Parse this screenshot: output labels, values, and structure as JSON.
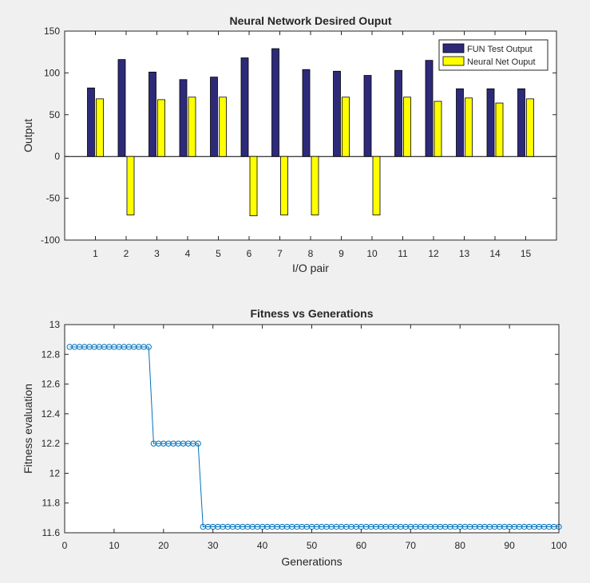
{
  "chart_data": [
    {
      "type": "bar",
      "title": "Neural Network Desired Ouput",
      "xlabel": "I/O pair",
      "ylabel": "Output",
      "ylim": [
        -100,
        150
      ],
      "yticks": [
        -100,
        -50,
        0,
        50,
        100,
        150
      ],
      "categories": [
        "1",
        "2",
        "3",
        "4",
        "5",
        "6",
        "7",
        "8",
        "9",
        "10",
        "11",
        "12",
        "13",
        "14",
        "15"
      ],
      "legend_position": "top-right",
      "series": [
        {
          "name": "FUN Test Output",
          "color": "#2e2a7a",
          "values": [
            82,
            116,
            101,
            92,
            95,
            118,
            129,
            104,
            102,
            97,
            103,
            115,
            81,
            81,
            81
          ]
        },
        {
          "name": "Neural Net Ouput",
          "color": "#ffff00",
          "values": [
            69,
            -70,
            68,
            71,
            71,
            -71,
            -70,
            -70,
            71,
            -70,
            71,
            66,
            70,
            64,
            69
          ]
        }
      ],
      "grid": false
    },
    {
      "type": "line",
      "title": "Fitness vs Generations",
      "xlabel": "Generations",
      "ylabel": "Fitness evaluation",
      "xlim": [
        0,
        100
      ],
      "ylim": [
        11.6,
        13
      ],
      "xticks": [
        0,
        10,
        20,
        30,
        40,
        50,
        60,
        70,
        80,
        90,
        100
      ],
      "yticks": [
        11.6,
        11.8,
        12,
        12.2,
        12.4,
        12.6,
        12.8,
        13
      ],
      "ytick_labels": [
        "11.6",
        "11.8",
        "12",
        "12.2",
        "12.4",
        "12.6",
        "12.8",
        "13"
      ],
      "marker": "circle",
      "color": "#0072bd",
      "grid": false,
      "segments": [
        {
          "x_from": 1,
          "x_to": 17,
          "y": 12.85
        },
        {
          "x_from": 18,
          "x_to": 27,
          "y": 12.2
        },
        {
          "x_from": 28,
          "x_to": 100,
          "y": 11.64
        }
      ]
    }
  ]
}
